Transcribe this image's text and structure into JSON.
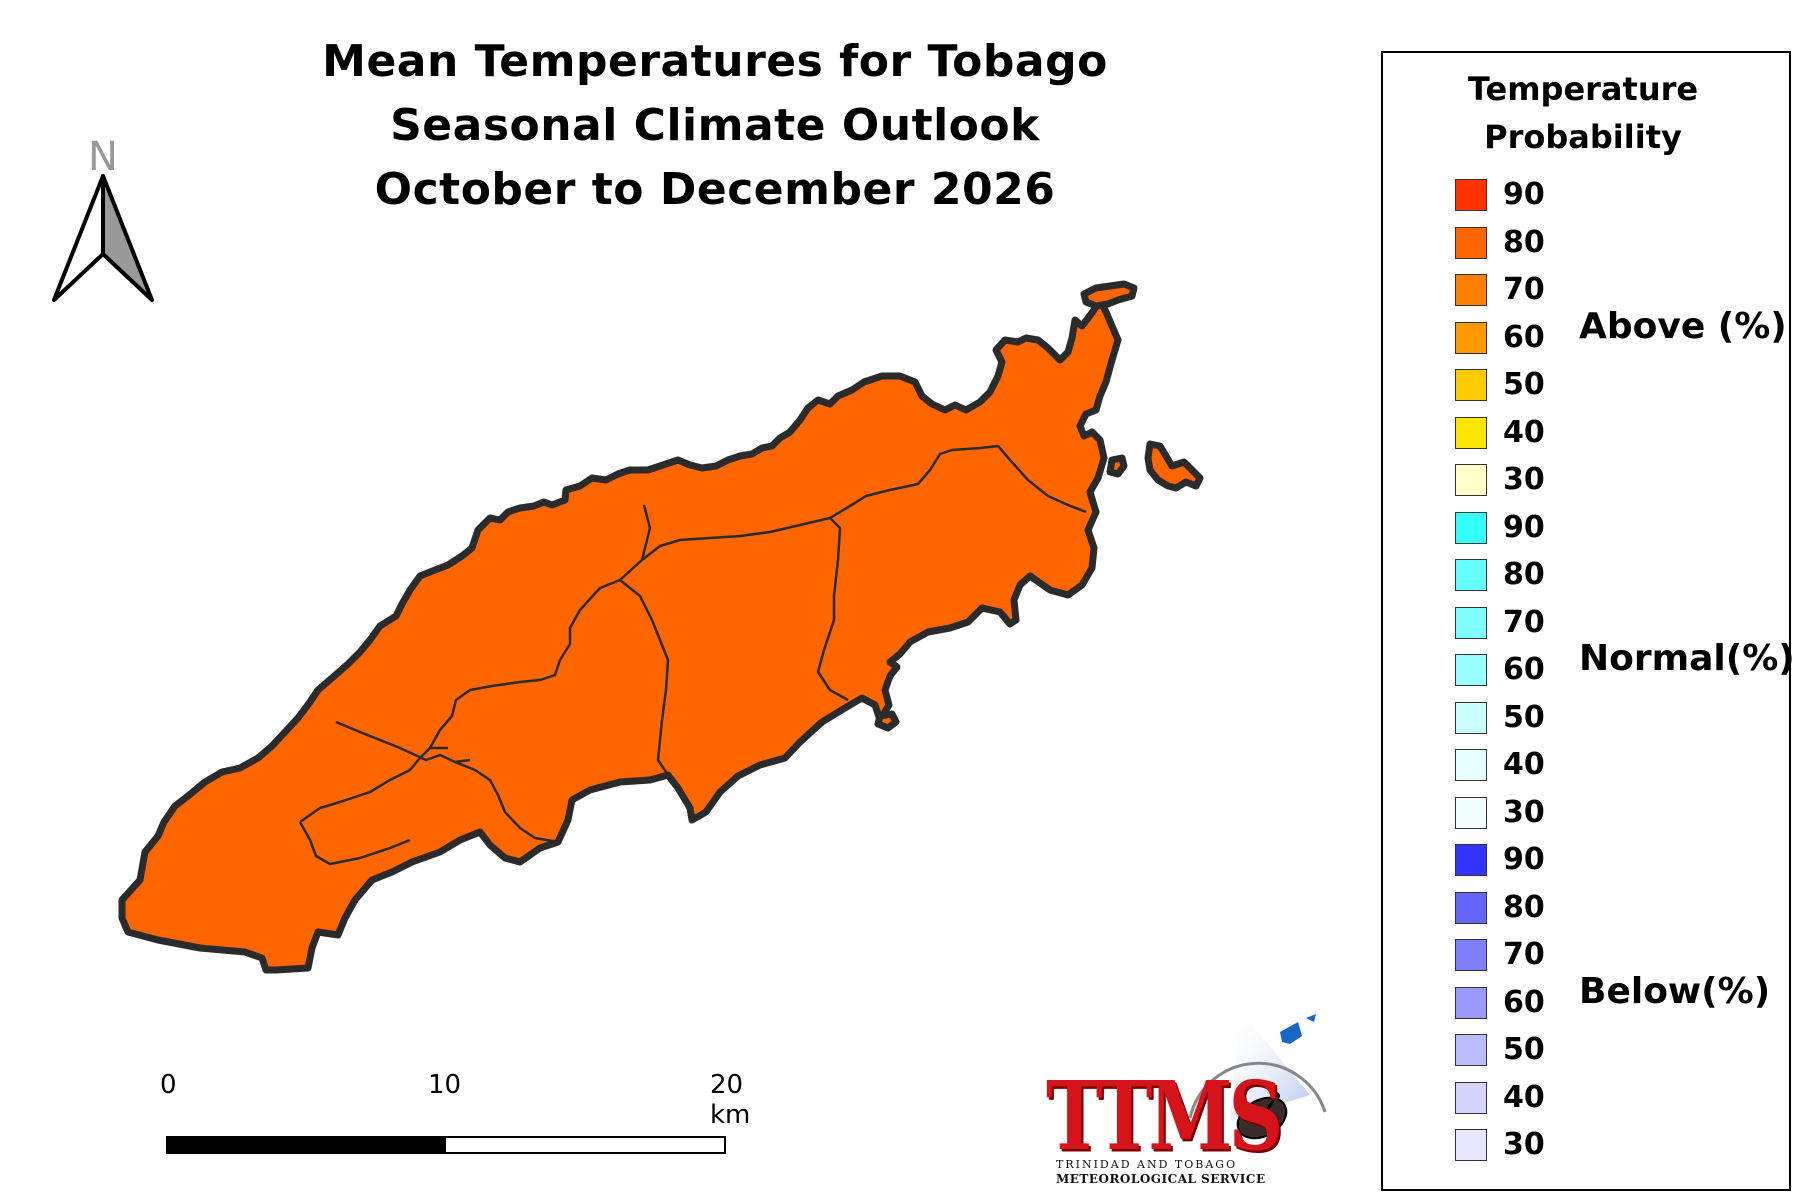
{
  "title": {
    "line1": "Mean Temperatures for Tobago",
    "line2": "Seasonal Climate Outlook",
    "line3": "October to December 2026"
  },
  "north_arrow": {
    "label": "N"
  },
  "map": {
    "fill_color": "#ff6600",
    "outline_color": "#2b2b2b",
    "region_count_hint": "parishes of Tobago"
  },
  "scale_bar": {
    "ticks": [
      "0",
      "10",
      "20 km"
    ]
  },
  "legend": {
    "title_line1": "Temperature",
    "title_line2": "Probability",
    "groups": [
      {
        "name": "Above (%)",
        "items": [
          {
            "value": "90",
            "color": "#ff3300"
          },
          {
            "value": "80",
            "color": "#ff6600"
          },
          {
            "value": "70",
            "color": "#ff8000"
          },
          {
            "value": "60",
            "color": "#ff9900"
          },
          {
            "value": "50",
            "color": "#ffcc00"
          },
          {
            "value": "40",
            "color": "#ffe600"
          },
          {
            "value": "30",
            "color": "#ffffcc"
          }
        ]
      },
      {
        "name": "Normal(%)",
        "items": [
          {
            "value": "90",
            "color": "#33ffff"
          },
          {
            "value": "80",
            "color": "#66ffff"
          },
          {
            "value": "70",
            "color": "#80ffff"
          },
          {
            "value": "60",
            "color": "#99ffff"
          },
          {
            "value": "50",
            "color": "#ccffff"
          },
          {
            "value": "40",
            "color": "#e6ffff"
          },
          {
            "value": "30",
            "color": "#f2ffff"
          }
        ]
      },
      {
        "name": "Below(%)",
        "items": [
          {
            "value": "90",
            "color": "#3333ff"
          },
          {
            "value": "80",
            "color": "#6666ff"
          },
          {
            "value": "70",
            "color": "#8080ff"
          },
          {
            "value": "60",
            "color": "#9999ff"
          },
          {
            "value": "50",
            "color": "#bbbbff"
          },
          {
            "value": "40",
            "color": "#d4d4ff"
          },
          {
            "value": "30",
            "color": "#e6e6ff"
          }
        ]
      }
    ]
  },
  "logo": {
    "acronym": "TTMS",
    "line1": "TRINIDAD AND TOBAGO",
    "line2": "METEOROLOGICAL SERVICE"
  }
}
